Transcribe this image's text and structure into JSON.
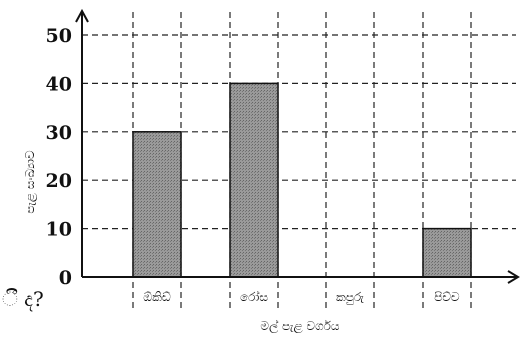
{
  "chart_data": {
    "type": "bar",
    "categories": [
      "ඕකිඩ්",
      "රෝස",
      "කපුරු",
      "පිච්ච"
    ],
    "values": [
      30,
      40,
      0,
      10
    ],
    "xlabel": "මල් පැළ වර්ගය",
    "ylabel": "පැළ සංඛ්‍යාව",
    "yticks": [
      "0",
      "10",
      "20",
      "30",
      "40",
      "50"
    ],
    "ylim": [
      0,
      50
    ],
    "grid": true,
    "bar_color": "#8a8a8a"
  },
  "fragment_text": "ී ද?"
}
